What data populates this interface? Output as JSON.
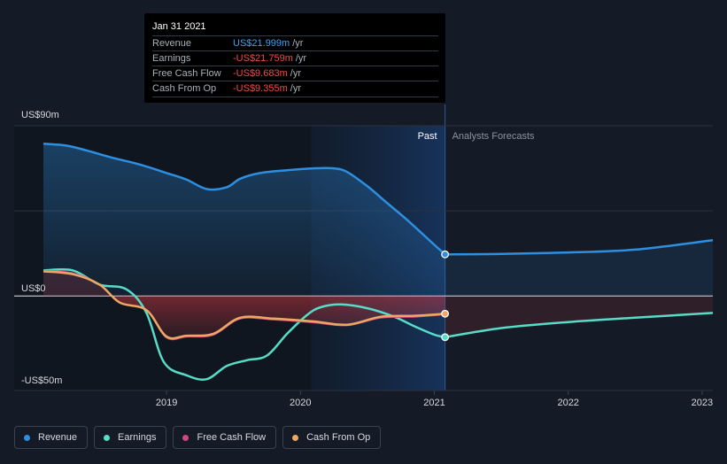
{
  "tooltip": {
    "date": "Jan 31 2021",
    "rows": [
      {
        "label": "Revenue",
        "value": "US$21.999m",
        "unit": "/yr",
        "tone": "pos"
      },
      {
        "label": "Earnings",
        "value": "-US$21.759m",
        "unit": "/yr",
        "tone": "neg"
      },
      {
        "label": "Free Cash Flow",
        "value": "-US$9.683m",
        "unit": "/yr",
        "tone": "neg"
      },
      {
        "label": "Cash From Op",
        "value": "-US$9.355m",
        "unit": "/yr",
        "tone": "neg"
      }
    ]
  },
  "legend": [
    {
      "label": "Revenue",
      "color": "#2e8fe0"
    },
    {
      "label": "Earnings",
      "color": "#57dcc7"
    },
    {
      "label": "Free Cash Flow",
      "color": "#d2477e"
    },
    {
      "label": "Cash From Op",
      "color": "#eca863"
    }
  ],
  "chart_data": {
    "type": "line",
    "y_tick_labels": [
      "US$90m",
      "US$0",
      "-US$50m"
    ],
    "ylim": [
      -50,
      90
    ],
    "xlim": [
      2018.08,
      2023.08
    ],
    "x_tick_labels": [
      "2019",
      "2020",
      "2021",
      "2022",
      "2023"
    ],
    "x_ticks": [
      2019,
      2020,
      2021,
      2022,
      2023
    ],
    "region_labels": {
      "past": "Past",
      "forecast": "Analysts Forecasts"
    },
    "past_end": 2021.08,
    "highlight_start": 2020.08,
    "grid": true,
    "legend_position": "bottom",
    "series": [
      {
        "name": "Revenue",
        "color": "#2e8fe0",
        "x": [
          2018.08,
          2018.25,
          2018.4,
          2018.6,
          2018.8,
          2019.0,
          2019.15,
          2019.3,
          2019.45,
          2019.55,
          2019.7,
          2019.9,
          2020.1,
          2020.25,
          2020.35,
          2020.5,
          2020.65,
          2020.8,
          2021.0,
          2021.08
        ],
        "y": [
          80.5,
          79.5,
          77,
          73,
          69.5,
          65,
          61.5,
          56.5,
          57.5,
          62,
          65,
          66.5,
          67.5,
          67.5,
          65.5,
          58,
          49,
          40,
          27,
          22
        ],
        "forecast": {
          "x": [
            2021.08,
            2021.5,
            2022.0,
            2022.5,
            2023.08
          ],
          "y": [
            22,
            22.2,
            23,
            24.5,
            29.5
          ]
        }
      },
      {
        "name": "Earnings",
        "color": "#57dcc7",
        "x": [
          2018.08,
          2018.3,
          2018.5,
          2018.7,
          2018.85,
          2018.98,
          2019.15,
          2019.3,
          2019.45,
          2019.6,
          2019.75,
          2019.9,
          2020.05,
          2020.15,
          2020.3,
          2020.5,
          2020.7,
          2020.85,
          2021.0,
          2021.08
        ],
        "y": [
          13.5,
          13.5,
          6,
          3.5,
          -9,
          -35,
          -42,
          -44,
          -37,
          -34,
          -31.5,
          -20,
          -10,
          -6,
          -4.5,
          -6.5,
          -11,
          -16,
          -20.5,
          -21.8
        ],
        "forecast": {
          "x": [
            2021.08,
            2021.5,
            2022.0,
            2022.5,
            2023.08
          ],
          "y": [
            -21.8,
            -17,
            -13.8,
            -11.5,
            -9
          ]
        }
      },
      {
        "name": "Free Cash Flow",
        "color": "#d2477e",
        "x": [
          2018.08,
          2018.3,
          2018.5,
          2018.65,
          2018.85,
          2019.0,
          2019.15,
          2019.35,
          2019.55,
          2019.8,
          2020.1,
          2020.35,
          2020.6,
          2020.85,
          2021.08
        ],
        "y": [
          13.3,
          12,
          6,
          -3.5,
          -7.5,
          -22,
          -21.5,
          -20.5,
          -12,
          -12.5,
          -14,
          -15.5,
          -11.5,
          -11,
          -9.7
        ]
      },
      {
        "name": "Cash From Op",
        "color": "#eca863",
        "x": [
          2018.08,
          2018.3,
          2018.5,
          2018.65,
          2018.85,
          2019.0,
          2019.15,
          2019.35,
          2019.55,
          2019.8,
          2020.1,
          2020.35,
          2020.6,
          2020.85,
          2021.08
        ],
        "y": [
          13,
          11.5,
          6,
          -3.5,
          -7.5,
          -21.5,
          -21,
          -20,
          -11.5,
          -12,
          -13.5,
          -15.2,
          -11,
          -10.5,
          -9.4
        ]
      }
    ]
  }
}
